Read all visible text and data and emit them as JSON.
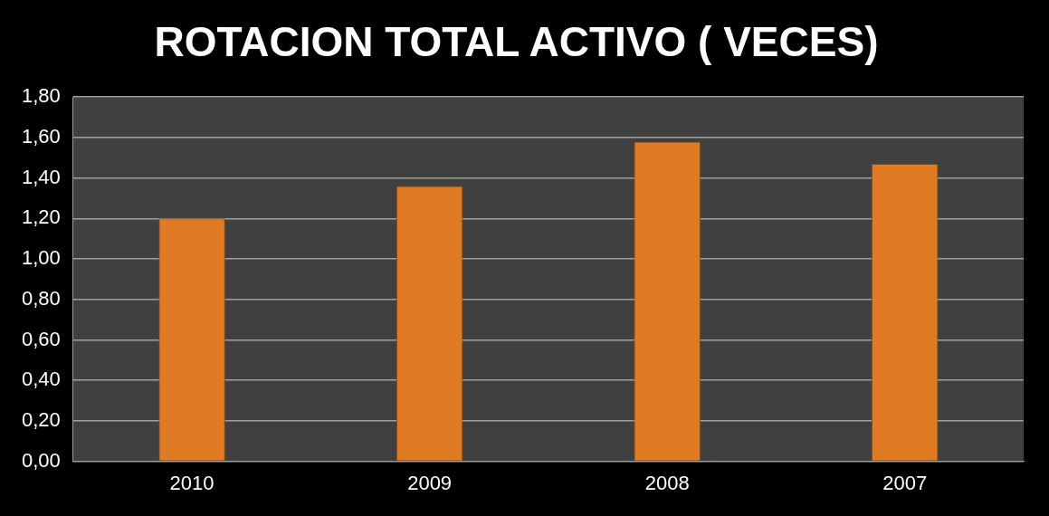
{
  "chart_data": {
    "type": "bar",
    "title": "ROTACION TOTAL ACTIVO ( VECES)",
    "categories": [
      "2010",
      "2009",
      "2008",
      "2007"
    ],
    "values": [
      1.2,
      1.36,
      1.58,
      1.47
    ],
    "color": "#e07b24",
    "ylim": [
      0,
      1.8
    ],
    "yticks": [
      {
        "value": 0,
        "label": "0,00"
      },
      {
        "value": 0.2,
        "label": "0,20"
      },
      {
        "value": 0.4,
        "label": "0,40"
      },
      {
        "value": 0.6,
        "label": "0,60"
      },
      {
        "value": 0.8,
        "label": "0,80"
      },
      {
        "value": 1,
        "label": "1,00"
      },
      {
        "value": 1.2,
        "label": "1,20"
      },
      {
        "value": 1.4,
        "label": "1,40"
      },
      {
        "value": 1.6,
        "label": "1,60"
      },
      {
        "value": 1.8,
        "label": "1,80"
      }
    ],
    "grid": true,
    "legend": false
  }
}
